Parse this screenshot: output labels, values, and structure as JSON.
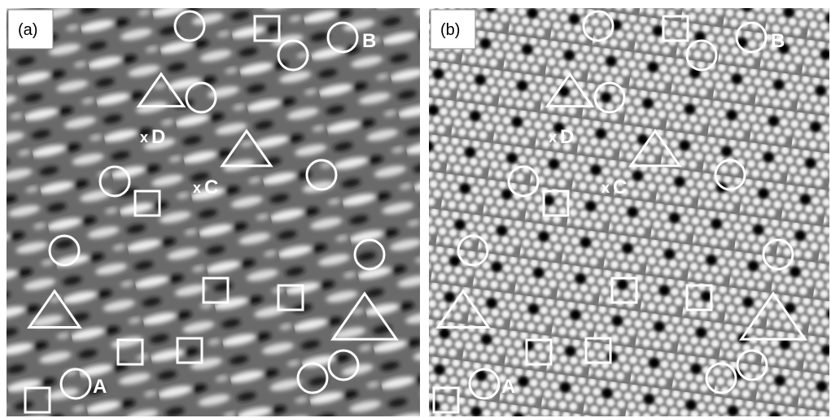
{
  "panels": [
    {
      "label": "(a)"
    },
    {
      "label": "(b)"
    }
  ],
  "annotations": {
    "A": "A",
    "B": "B",
    "C": {
      "marker": "x",
      "label": "C"
    },
    "D": {
      "marker": "x",
      "label": "D"
    }
  }
}
